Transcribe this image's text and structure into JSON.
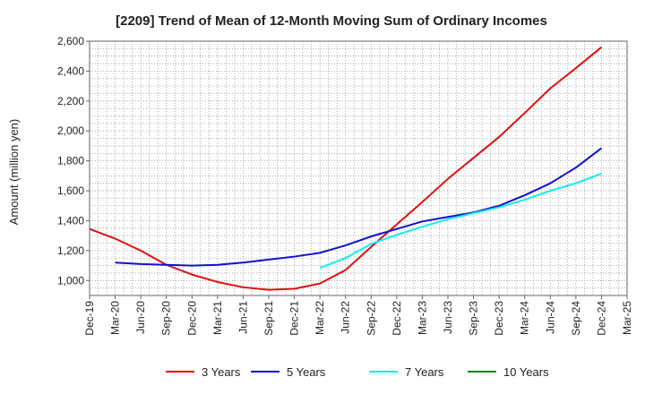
{
  "chart_data": {
    "type": "line",
    "title": "[2209]  Trend of Mean of 12-Month Moving Sum of Ordinary Incomes",
    "xlabel": "",
    "ylabel": "Amount (million yen)",
    "ylim": [
      900,
      2600
    ],
    "yticks": [
      1000,
      1200,
      1400,
      1600,
      1800,
      2000,
      2200,
      2400,
      2600
    ],
    "ytick_labels": [
      "1,000",
      "1,200",
      "1,400",
      "1,600",
      "1,800",
      "2,000",
      "2,200",
      "2,400",
      "2,600"
    ],
    "categories": [
      "Dec-19",
      "Mar-20",
      "Jun-20",
      "Sep-20",
      "Dec-20",
      "Mar-21",
      "Jun-21",
      "Sep-21",
      "Dec-21",
      "Mar-22",
      "Jun-22",
      "Sep-22",
      "Dec-22",
      "Mar-23",
      "Jun-23",
      "Sep-23",
      "Dec-23",
      "Mar-24",
      "Jun-24",
      "Sep-24",
      "Dec-24",
      "Mar-25"
    ],
    "grid": true,
    "legend_position": "bottom",
    "series": [
      {
        "name": "3 Years",
        "color": "#dd1111",
        "values": [
          1345,
          1280,
          1200,
          1105,
          1040,
          990,
          955,
          938,
          945,
          980,
          1070,
          1225,
          1375,
          1525,
          1680,
          1820,
          1960,
          2120,
          2285,
          2420,
          2560,
          null
        ]
      },
      {
        "name": "5 Years",
        "color": "#1111cc",
        "values": [
          null,
          1120,
          1110,
          1105,
          1100,
          1105,
          1120,
          1140,
          1160,
          1185,
          1235,
          1295,
          1345,
          1395,
          1425,
          1455,
          1500,
          1570,
          1650,
          1755,
          1885,
          null
        ]
      },
      {
        "name": "7 Years",
        "color": "#11eeee",
        "values": [
          null,
          null,
          null,
          null,
          null,
          null,
          null,
          null,
          null,
          1085,
          1150,
          1245,
          1305,
          1360,
          1410,
          1450,
          1490,
          1540,
          1600,
          1650,
          1715,
          null
        ]
      },
      {
        "name": "10 Years",
        "color": "#118811",
        "values": [
          null,
          null,
          null,
          null,
          null,
          null,
          null,
          null,
          null,
          null,
          null,
          null,
          null,
          null,
          null,
          null,
          null,
          null,
          null,
          null,
          null,
          null
        ]
      }
    ]
  }
}
